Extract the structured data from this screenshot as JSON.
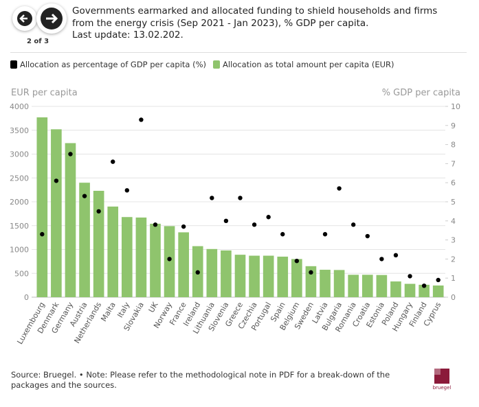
{
  "navigation": {
    "position": "2 of 3"
  },
  "logo": "bruegel",
  "footnote": "Source: Bruegel. • Note: Please refer to the methodological note in PDF for a break-down of the packages and the sources.",
  "chart_data": {
    "type": "bar",
    "title": "Governments earmarked and allocated funding to shield households and firms from the energy crisis (Sep 2021 - Jan 2023), % GDP per capita.",
    "subtitle": "Last update: 13.02.202.",
    "y_label": "EUR per capita",
    "y2_label": "% GDP per capita",
    "categories": [
      "Luxembourg",
      "Denmark",
      "Germany",
      "Austria",
      "Netherlands",
      "Malta",
      "Italy",
      "Slovakia",
      "UK",
      "Norway",
      "France",
      "Ireland",
      "Lithuania",
      "Slovenia",
      "Greece",
      "Czechia",
      "Portugal",
      "Spain",
      "Belgium",
      "Sweden",
      "Latvia",
      "Bulgaria",
      "Romania",
      "Croatia",
      "Estonia",
      "Poland",
      "Hungary",
      "Finland",
      "Cyprus"
    ],
    "series": [
      {
        "name": "Allocation as percentage of GDP per capita (%)",
        "type": "scatter",
        "axis": "y2",
        "color": "#000000",
        "values": [
          3.3,
          6.1,
          7.5,
          5.3,
          4.5,
          7.1,
          5.6,
          9.3,
          3.8,
          2.0,
          3.7,
          1.3,
          5.2,
          4.0,
          5.2,
          3.8,
          4.2,
          3.3,
          1.9,
          1.3,
          3.3,
          5.7,
          3.8,
          3.2,
          2.0,
          2.2,
          1.1,
          0.6,
          0.9
        ]
      },
      {
        "name": "Allocation as total amount per capita (EUR)",
        "type": "bar",
        "color": "#8fc46d",
        "values": [
          3770,
          3520,
          3230,
          2400,
          2230,
          1900,
          1680,
          1670,
          1540,
          1490,
          1360,
          1070,
          1010,
          980,
          890,
          870,
          870,
          850,
          800,
          650,
          575,
          570,
          470,
          470,
          465,
          330,
          280,
          260,
          245
        ]
      }
    ],
    "ylim": [
      0,
      4000
    ],
    "yticks": [
      0,
      500,
      1000,
      1500,
      2000,
      2500,
      3000,
      3500,
      4000
    ],
    "y2lim": [
      0,
      10
    ],
    "y2ticks": [
      0,
      1,
      2,
      3,
      4,
      5,
      6,
      7,
      8,
      9,
      10
    ],
    "grid": true
  }
}
